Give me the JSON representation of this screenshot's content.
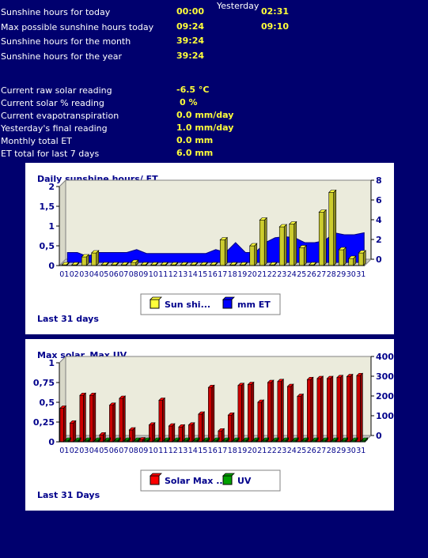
{
  "stats": {
    "yesterday_label": "Yesterday",
    "rows": [
      {
        "label": "Sunshine hours for today",
        "today": "00:00",
        "yesterday": "02:31"
      },
      {
        "label": "Max possible sunshine hours today",
        "today": "09:24",
        "yesterday": "09:10"
      },
      {
        "label": "Sunshine hours for the month",
        "today": "39:24"
      },
      {
        "label": "Sunshine hours for the year",
        "today": "39:24"
      }
    ],
    "readings": [
      {
        "label": "Current raw solar reading",
        "value": "-6.5 °C"
      },
      {
        "label": "Current solar % reading",
        "value": "0 %"
      },
      {
        "label": "Current evapotranspiration",
        "value": "0.0 mm/day"
      },
      {
        "label": "Yesterday's final reading",
        "value": "1.0 mm/day"
      },
      {
        "label": "Monthly total ET",
        "value": "0.0 mm"
      },
      {
        "label": "ET total for last 7 days",
        "value": "6.0 mm"
      }
    ]
  },
  "colors": {
    "background": "#00006e",
    "text_label": "#ffffff",
    "text_value": "#ffff3a",
    "sun_bar": "#ffff3a",
    "et_area": "#0000ff",
    "solar_bar": "#ff0000",
    "uv_bar": "#00a000"
  },
  "chart_data": [
    {
      "type": "bar",
      "title": "Daily sunshine hours/ ET",
      "footer": "Last 31 days",
      "categories": [
        "01",
        "02",
        "03",
        "04",
        "05",
        "06",
        "07",
        "08",
        "09",
        "10",
        "11",
        "12",
        "13",
        "14",
        "15",
        "16",
        "17",
        "18",
        "19",
        "20",
        "21",
        "22",
        "23",
        "24",
        "25",
        "26",
        "27",
        "28",
        "29",
        "30",
        "31"
      ],
      "ylim_left": [
        0,
        2
      ],
      "yticks_left": [
        "0",
        "0,5",
        "1",
        "1,5",
        "2"
      ],
      "ylim_right": [
        0,
        8
      ],
      "yticks_right": [
        "0",
        "2",
        "4",
        "6",
        "8"
      ],
      "series": [
        {
          "name": "Sun shi...",
          "axis": "left",
          "type": "bar",
          "values": [
            0.02,
            0.02,
            0.22,
            0.32,
            0.02,
            0.02,
            0.02,
            0.08,
            0.02,
            0.02,
            0.02,
            0.02,
            0.02,
            0.02,
            0.02,
            0.02,
            0.65,
            0.02,
            0.02,
            0.5,
            1.15,
            0.02,
            0.98,
            1.05,
            0.45,
            0.02,
            1.35,
            1.85,
            0.4,
            0.18,
            0.32
          ]
        },
        {
          "name": "mm ET",
          "axis": "right",
          "type": "area",
          "values": [
            1.0,
            1.0,
            0.6,
            1.0,
            1.0,
            1.0,
            1.0,
            1.3,
            0.9,
            0.9,
            0.9,
            0.9,
            0.9,
            0.9,
            0.9,
            1.3,
            1.0,
            2.0,
            1.0,
            1.0,
            2.0,
            2.5,
            2.6,
            2.5,
            2.0,
            2.0,
            2.2,
            3.0,
            2.8,
            2.8,
            3.0
          ]
        }
      ],
      "legend": "bottom-center",
      "grid": false
    },
    {
      "type": "bar",
      "title": "Max solar, Max UV",
      "footer": "Last 31 Days",
      "categories": [
        "01",
        "02",
        "03",
        "04",
        "05",
        "06",
        "07",
        "08",
        "09",
        "10",
        "11",
        "12",
        "13",
        "14",
        "15",
        "16",
        "17",
        "18",
        "19",
        "20",
        "21",
        "22",
        "23",
        "24",
        "25",
        "26",
        "27",
        "28",
        "29",
        "30",
        "31"
      ],
      "ylim_left": [
        0,
        1
      ],
      "yticks_left": [
        "0",
        "0,25",
        "0,5",
        "0,75",
        "1"
      ],
      "ylim_right": [
        0,
        400
      ],
      "yticks_right": [
        "0",
        "100",
        "200",
        "300",
        "400"
      ],
      "series": [
        {
          "name": "Solar Max ...",
          "axis": "right",
          "type": "bar",
          "values": [
            170,
            95,
            235,
            235,
            35,
            185,
            220,
            60,
            10,
            85,
            210,
            80,
            75,
            85,
            140,
            275,
            55,
            135,
            285,
            290,
            200,
            300,
            305,
            280,
            230,
            315,
            320,
            320,
            325,
            330,
            335
          ]
        },
        {
          "name": "UV",
          "axis": "left",
          "type": "bar",
          "values": [
            0.02,
            0.02,
            0.02,
            0.02,
            0.02,
            0.02,
            0.02,
            0.02,
            0.02,
            0.02,
            0.02,
            0.02,
            0.02,
            0.02,
            0.02,
            0.02,
            0.02,
            0.02,
            0.02,
            0.02,
            0.02,
            0.02,
            0.02,
            0.02,
            0.02,
            0.02,
            0.02,
            0.02,
            0.02,
            0.02,
            0.02
          ]
        }
      ],
      "legend": "bottom-center",
      "grid": false
    }
  ]
}
